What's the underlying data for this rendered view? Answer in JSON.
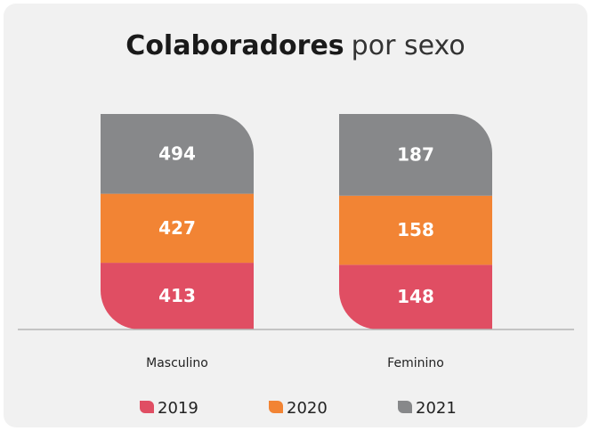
{
  "chart_data": {
    "type": "bar",
    "stacking": "percent",
    "title": {
      "bold": "Colaboradores",
      "rest": "por sexo"
    },
    "categories": [
      "Masculino",
      "Feminino"
    ],
    "series": [
      {
        "name": "2019",
        "color": "#e04e63",
        "values": [
          413,
          148
        ]
      },
      {
        "name": "2020",
        "color": "#f28434",
        "values": [
          427,
          158
        ]
      },
      {
        "name": "2021",
        "color": "#87888a",
        "values": [
          494,
          187
        ]
      }
    ]
  }
}
